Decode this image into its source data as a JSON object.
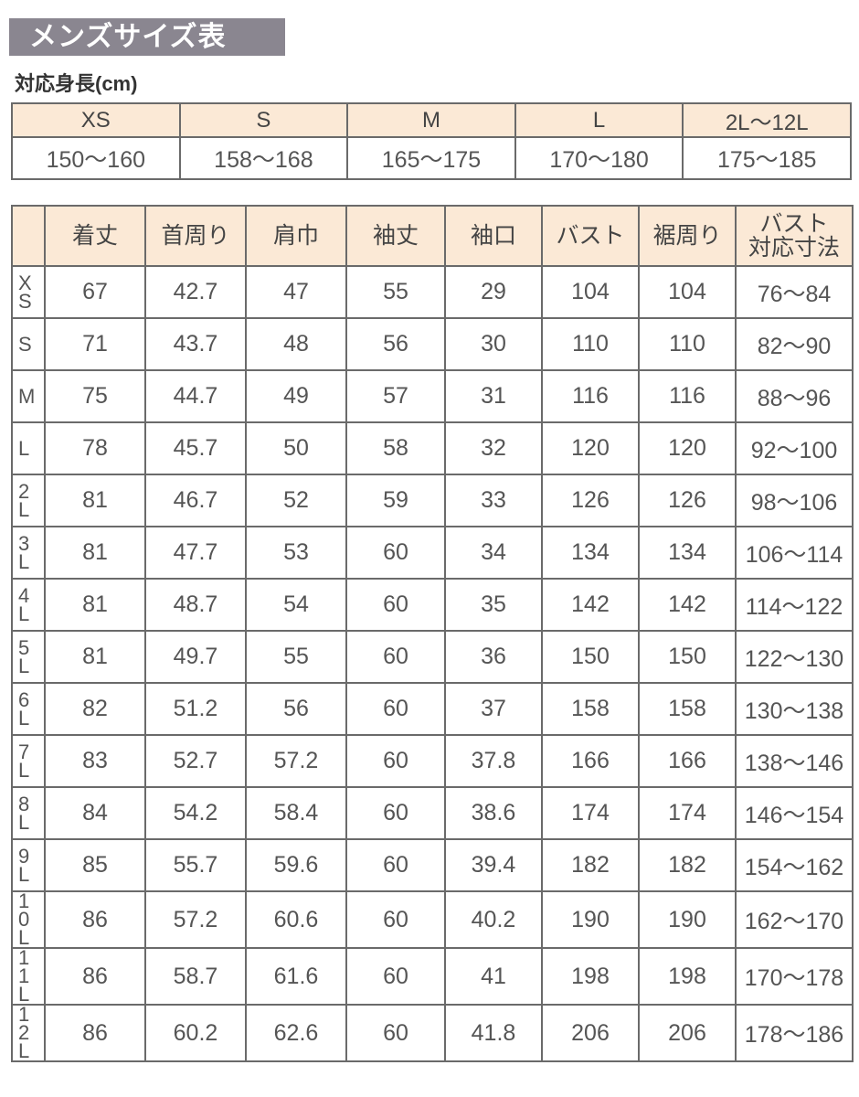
{
  "title": "メンズサイズ表",
  "height_section": {
    "label": "対応身長(cm)",
    "sizes": [
      "XS",
      "S",
      "M",
      "L",
      "2L〜12L"
    ],
    "heights": [
      "150〜160",
      "158〜168",
      "165〜175",
      "170〜180",
      "175〜185"
    ]
  },
  "size_table": {
    "headers": [
      "",
      "着丈",
      "首周り",
      "肩巾",
      "袖丈",
      "袖口",
      "バスト",
      "裾周り",
      "バスト\n対応寸法"
    ],
    "rows": [
      {
        "label": "XS",
        "values": [
          "67",
          "42.7",
          "47",
          "55",
          "29",
          "104",
          "104",
          "76〜84"
        ]
      },
      {
        "label": "S",
        "values": [
          "71",
          "43.7",
          "48",
          "56",
          "30",
          "110",
          "110",
          "82〜90"
        ]
      },
      {
        "label": "M",
        "values": [
          "75",
          "44.7",
          "49",
          "57",
          "31",
          "116",
          "116",
          "88〜96"
        ]
      },
      {
        "label": "L",
        "values": [
          "78",
          "45.7",
          "50",
          "58",
          "32",
          "120",
          "120",
          "92〜100"
        ]
      },
      {
        "label": "2L",
        "values": [
          "81",
          "46.7",
          "52",
          "59",
          "33",
          "126",
          "126",
          "98〜106"
        ]
      },
      {
        "label": "3L",
        "values": [
          "81",
          "47.7",
          "53",
          "60",
          "34",
          "134",
          "134",
          "106〜114"
        ]
      },
      {
        "label": "4L",
        "values": [
          "81",
          "48.7",
          "54",
          "60",
          "35",
          "142",
          "142",
          "114〜122"
        ]
      },
      {
        "label": "5L",
        "values": [
          "81",
          "49.7",
          "55",
          "60",
          "36",
          "150",
          "150",
          "122〜130"
        ]
      },
      {
        "label": "6L",
        "values": [
          "82",
          "51.2",
          "56",
          "60",
          "37",
          "158",
          "158",
          "130〜138"
        ]
      },
      {
        "label": "7L",
        "values": [
          "83",
          "52.7",
          "57.2",
          "60",
          "37.8",
          "166",
          "166",
          "138〜146"
        ]
      },
      {
        "label": "8L",
        "values": [
          "84",
          "54.2",
          "58.4",
          "60",
          "38.6",
          "174",
          "174",
          "146〜154"
        ]
      },
      {
        "label": "9L",
        "values": [
          "85",
          "55.7",
          "59.6",
          "60",
          "39.4",
          "182",
          "182",
          "154〜162"
        ]
      },
      {
        "label": "10L",
        "values": [
          "86",
          "57.2",
          "60.6",
          "60",
          "40.2",
          "190",
          "190",
          "162〜170"
        ]
      },
      {
        "label": "11L",
        "values": [
          "86",
          "58.7",
          "61.6",
          "60",
          "41",
          "198",
          "198",
          "170〜178"
        ]
      },
      {
        "label": "12L",
        "values": [
          "86",
          "60.2",
          "62.6",
          "60",
          "41.8",
          "206",
          "206",
          "178〜186"
        ]
      }
    ]
  },
  "colors": {
    "title_bg": "#8a8690",
    "header_bg": "#fbe9d6",
    "border": "#6a6a6a"
  }
}
